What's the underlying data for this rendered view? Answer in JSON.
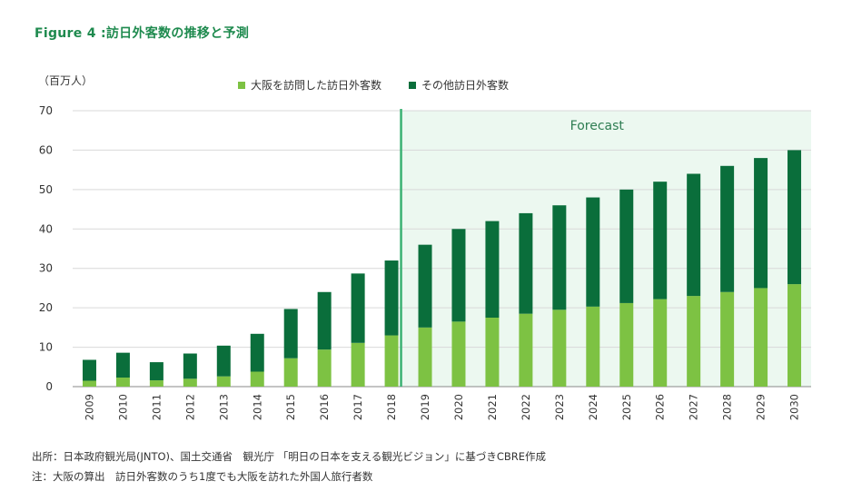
{
  "title": "Figure 4 :訪日外客数の推移と予測",
  "unit": "（百万人）",
  "colors": {
    "osaka": "#7dc243",
    "other": "#0a6e3b",
    "forecast_bg": "#ecf8f0",
    "forecast_line": "#3bb273",
    "accent": "#1e8a4e"
  },
  "notes": {
    "source": "出所：日本政府観光局(JNTO)、国土交通省　観光庁 「明日の日本を支える観光ビジョン」に基づきCBRE作成",
    "note": "注：大阪の算出　訪日外客数のうち1度でも大阪を訪れた外国人旅行者数"
  },
  "chart_data": {
    "type": "bar",
    "stacked": true,
    "categories": [
      "2009",
      "2010",
      "2011",
      "2012",
      "2013",
      "2014",
      "2015",
      "2016",
      "2017",
      "2018",
      "2019",
      "2020",
      "2021",
      "2022",
      "2023",
      "2024",
      "2025",
      "2026",
      "2027",
      "2028",
      "2029",
      "2030"
    ],
    "series": [
      {
        "name": "大阪を訪問した訪日外客数",
        "values": [
          1.5,
          2.3,
          1.6,
          2.0,
          2.6,
          3.8,
          7.2,
          9.4,
          11.1,
          13.0,
          15.0,
          16.5,
          17.5,
          18.5,
          19.5,
          20.3,
          21.2,
          22.2,
          23.0,
          24.0,
          25.0,
          26.0
        ]
      },
      {
        "name": "その他訪日外客数",
        "values": [
          5.3,
          6.3,
          4.6,
          6.4,
          7.8,
          9.6,
          12.5,
          14.6,
          17.6,
          19.0,
          21.0,
          23.5,
          24.5,
          25.5,
          26.5,
          27.7,
          28.8,
          29.8,
          31.0,
          32.0,
          33.0,
          34.0
        ]
      }
    ],
    "ylim": [
      0,
      70
    ],
    "yticks": [
      0,
      10,
      20,
      30,
      40,
      50,
      60,
      70
    ],
    "forecast_label": "Forecast",
    "forecast_start": "2019",
    "grid": true,
    "legend_position": "top"
  }
}
